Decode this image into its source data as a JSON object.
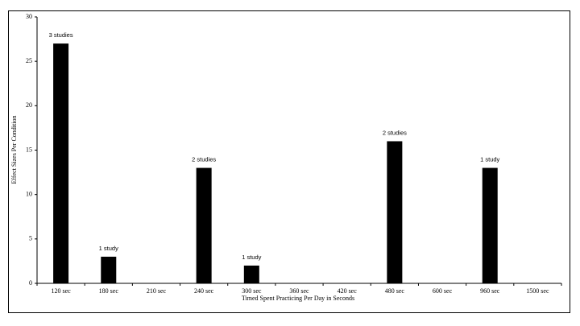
{
  "chart_data": {
    "type": "bar",
    "categories": [
      "120 sec",
      "180 sec",
      "210 sec",
      "240 sec",
      "300 sec",
      "360 sec",
      "420 sec",
      "480 sec",
      "600 sec",
      "960 sec",
      "1500 sec"
    ],
    "values": [
      27,
      3,
      0,
      13,
      2,
      0,
      0,
      16,
      0,
      13,
      0
    ],
    "bar_notes": [
      "3 studies",
      "1 study",
      null,
      "2 studies",
      "1 study",
      null,
      null,
      "2 studies",
      null,
      "1 study",
      null
    ],
    "color": "#000000",
    "ylim": [
      0,
      30
    ],
    "yticks": [
      0,
      5,
      10,
      15,
      20,
      25,
      30
    ],
    "x_label": "Timed Spent Practicing Per Day in Seconds",
    "y_label": "Effect Sizes Per Condition",
    "grid": false
  }
}
